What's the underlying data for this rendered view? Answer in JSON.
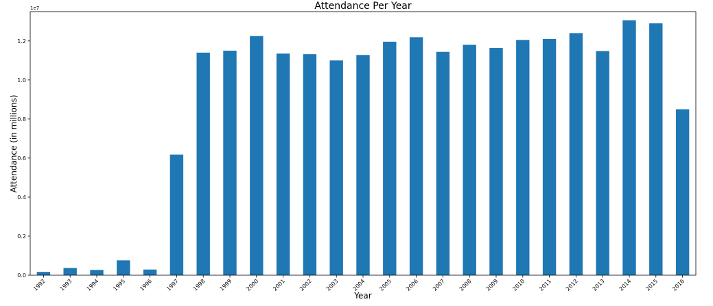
{
  "chart_data": {
    "type": "bar",
    "title": "Attendance Per Year",
    "xlabel": "Year",
    "ylabel": "Attendance (in millions)",
    "offset_text": "1e7",
    "bar_color": "#1f77b4",
    "ylim": [
      0,
      13500000
    ],
    "yticks": [
      0,
      2000000,
      4000000,
      6000000,
      8000000,
      10000000,
      12000000
    ],
    "ytick_labels": [
      "0.0",
      "0.2",
      "0.4",
      "0.6",
      "0.8",
      "1.0",
      "1.2"
    ],
    "grid": false,
    "categories": [
      "1992",
      "1993",
      "1994",
      "1995",
      "1996",
      "1997",
      "1998",
      "1999",
      "2000",
      "2001",
      "2002",
      "2003",
      "2004",
      "2005",
      "2006",
      "2007",
      "2008",
      "2009",
      "2010",
      "2011",
      "2012",
      "2013",
      "2014",
      "2015",
      "2016"
    ],
    "values": [
      170000,
      370000,
      270000,
      760000,
      290000,
      6180000,
      11400000,
      11500000,
      12250000,
      11350000,
      11320000,
      11000000,
      11280000,
      11960000,
      12190000,
      11440000,
      11800000,
      11640000,
      12050000,
      12100000,
      12400000,
      11480000,
      13060000,
      12900000,
      8500000
    ]
  }
}
